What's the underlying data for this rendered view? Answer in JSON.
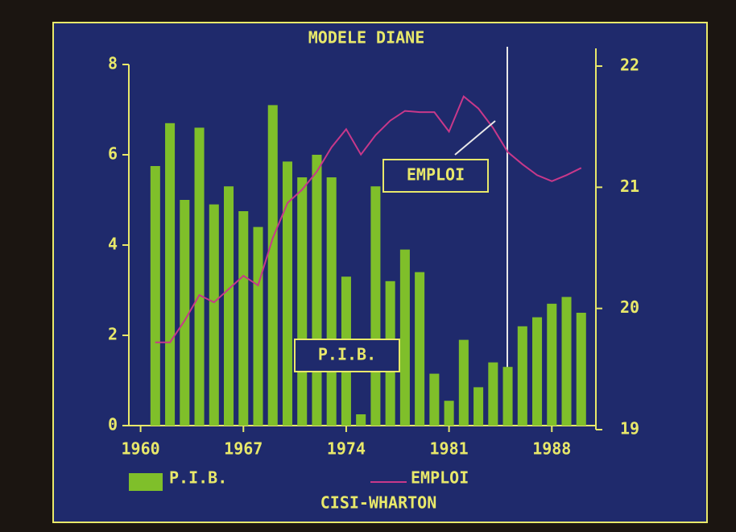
{
  "chart_data": {
    "type": "bar",
    "title": "MODELE DIANE",
    "footer": "CISI-WHARTON",
    "x": [
      1961,
      1962,
      1963,
      1964,
      1965,
      1966,
      1967,
      1968,
      1969,
      1970,
      1971,
      1972,
      1973,
      1974,
      1975,
      1976,
      1977,
      1978,
      1979,
      1980,
      1981,
      1982,
      1983,
      1984,
      1985,
      1986,
      1987,
      1988,
      1989,
      1990
    ],
    "xlim": [
      1959.2,
      1991
    ],
    "xticks": [
      1960,
      1967,
      1974,
      1981,
      1988
    ],
    "ylim": [
      0,
      8
    ],
    "yticks": [
      0,
      2,
      4,
      6,
      8
    ],
    "y2lim": [
      19,
      22
    ],
    "y2ticks": [
      19,
      20,
      21,
      22
    ],
    "series": [
      {
        "name": "P.I.B.",
        "type": "bar",
        "color": "#7fbf2a",
        "values": [
          5.75,
          6.7,
          5.0,
          6.6,
          4.9,
          5.3,
          4.75,
          4.4,
          7.1,
          5.85,
          5.5,
          6.0,
          5.5,
          3.3,
          0.25,
          5.3,
          3.2,
          3.9,
          3.4,
          1.15,
          0.55,
          1.9,
          0.85,
          1.4,
          1.3,
          2.2,
          2.4,
          2.7,
          2.85,
          2.5
        ]
      },
      {
        "name": "EMPLOI",
        "type": "line",
        "axis": "y2",
        "color": "#c8388a",
        "values": [
          19.72,
          19.72,
          19.9,
          20.11,
          20.05,
          20.16,
          20.27,
          20.19,
          20.58,
          20.87,
          20.98,
          21.13,
          21.33,
          21.48,
          21.27,
          21.43,
          21.55,
          21.63,
          21.62,
          21.62,
          21.46,
          21.75,
          21.65,
          21.49,
          21.29,
          21.19,
          21.1,
          21.05,
          21.1,
          21.16
        ]
      }
    ],
    "annotations": [
      "EMPLOI",
      "P.I.B."
    ]
  }
}
